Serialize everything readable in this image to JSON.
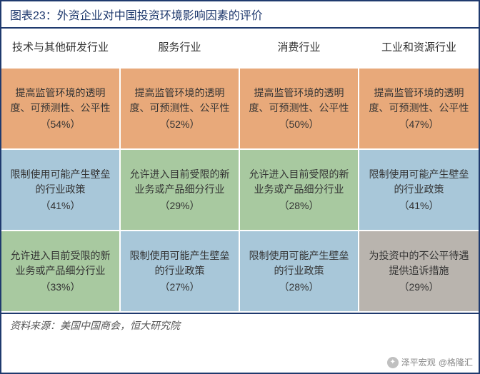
{
  "title": "图表23：外资企业对中国投资环境影响因素的评价",
  "source": "资料来源：美国中国商会，恒大研究院",
  "watermark": {
    "left": "泽平宏观",
    "right": "@格隆汇"
  },
  "colors": {
    "border": "#1f3a6e",
    "orange": "#e8a97a",
    "blue": "#a8c7d9",
    "green": "#a8c9a0",
    "gray": "#b9b4ae",
    "white": "#ffffff"
  },
  "headers": [
    "技术与其他研发行业",
    "服务行业",
    "消费行业",
    "工业和资源行业"
  ],
  "rows": [
    [
      {
        "text": "提高监管环境的透明度、可预测性、公平性",
        "pct": "（54%）",
        "bg": "#e8a97a"
      },
      {
        "text": "提高监管环境的透明度、可预测性、公平性",
        "pct": "（52%）",
        "bg": "#e8a97a"
      },
      {
        "text": "提高监管环境的透明度、可预测性、公平性",
        "pct": "（50%）",
        "bg": "#e8a97a"
      },
      {
        "text": "提高监管环境的透明度、可预测性、公平性",
        "pct": "（47%）",
        "bg": "#e8a97a"
      }
    ],
    [
      {
        "text": "限制使用可能产生壁垒的行业政策",
        "pct": "（41%）",
        "bg": "#a8c7d9"
      },
      {
        "text": "允许进入目前受限的新业务或产品细分行业",
        "pct": "（29%）",
        "bg": "#a8c9a0"
      },
      {
        "text": "允许进入目前受限的新业务或产品细分行业",
        "pct": "（28%）",
        "bg": "#a8c9a0"
      },
      {
        "text": "限制使用可能产生壁垒的行业政策",
        "pct": "（41%）",
        "bg": "#a8c7d9"
      }
    ],
    [
      {
        "text": "允许进入目前受限的新业务或产品细分行业",
        "pct": "（33%）",
        "bg": "#a8c9a0"
      },
      {
        "text": "限制使用可能产生壁垒的行业政策",
        "pct": "（27%）",
        "bg": "#a8c7d9"
      },
      {
        "text": "限制使用可能产生壁垒的行业政策",
        "pct": "（28%）",
        "bg": "#a8c7d9"
      },
      {
        "text": "为投资中的不公平待遇提供追诉措施",
        "pct": "（29%）",
        "bg": "#b9b4ae"
      }
    ]
  ]
}
